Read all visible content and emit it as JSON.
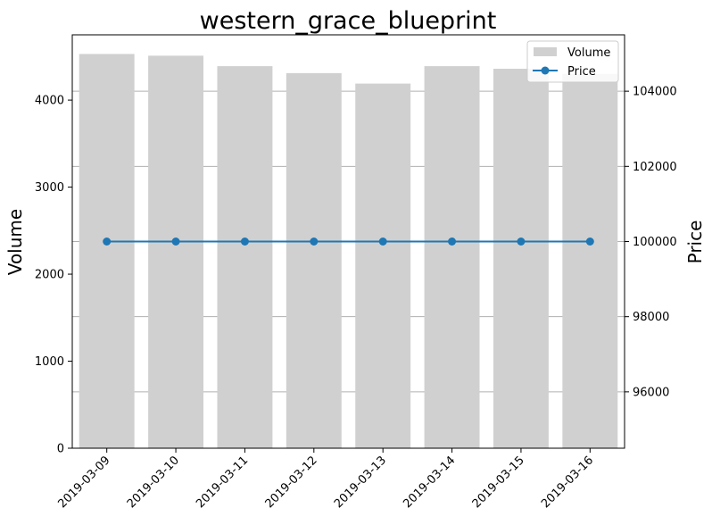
{
  "chart_data": {
    "type": "bar+line",
    "title": "western_grace_blueprint",
    "categories": [
      "2019-03-09",
      "2019-03-10",
      "2019-03-11",
      "2019-03-12",
      "2019-03-13",
      "2019-03-14",
      "2019-03-15",
      "2019-03-16"
    ],
    "series": [
      {
        "name": "Volume",
        "type": "bar",
        "axis": "left",
        "values": [
          4530,
          4510,
          4390,
          4310,
          4190,
          4390,
          4360,
          4300
        ],
        "color": "#d0d0d0"
      },
      {
        "name": "Price",
        "type": "line",
        "axis": "right",
        "values": [
          100000,
          100000,
          100000,
          100000,
          100000,
          100000,
          100000,
          100000
        ],
        "color": "#1f77b4"
      }
    ],
    "y_left": {
      "label": "Volume",
      "range": [
        0,
        4750
      ],
      "ticks": [
        0,
        1000,
        2000,
        3000,
        4000
      ]
    },
    "y_right": {
      "label": "Price",
      "range": [
        94500,
        105500
      ],
      "ticks": [
        96000,
        98000,
        100000,
        102000,
        104000
      ]
    },
    "grid": "horizontal, right axis",
    "legend": "top-right",
    "tick_label_rotation": 45
  }
}
